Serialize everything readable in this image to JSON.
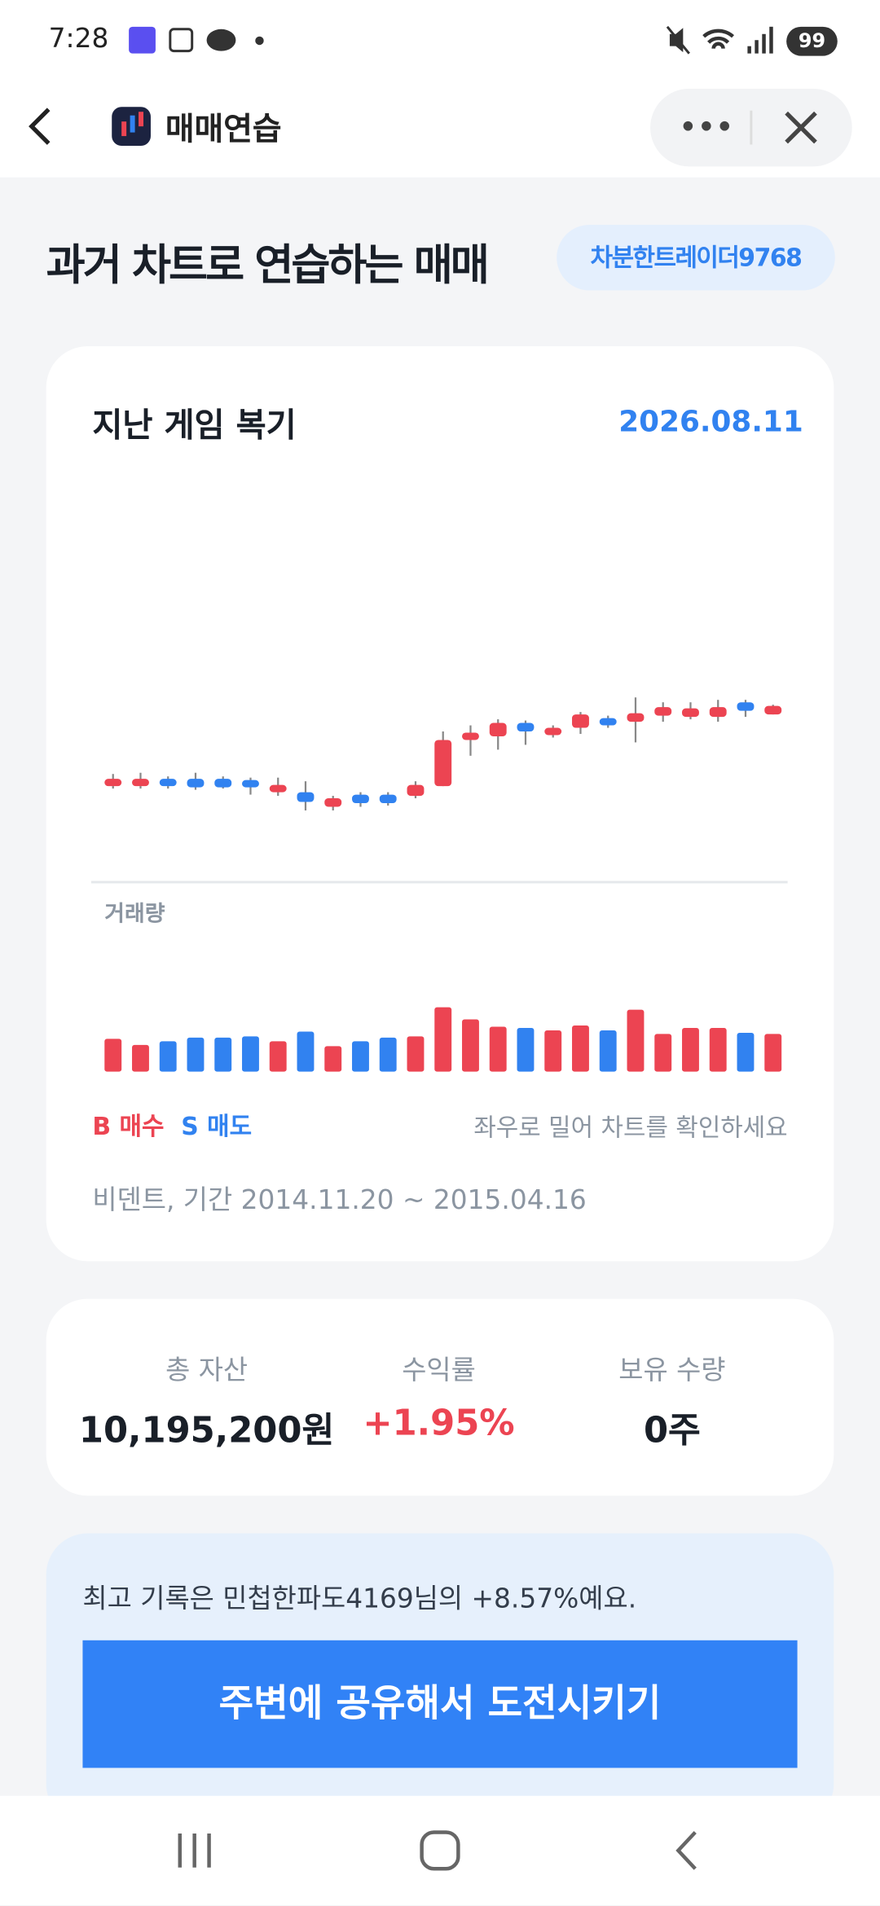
{
  "status_bar": {
    "time": "7:28",
    "battery": "99"
  },
  "header": {
    "title": "매매연습"
  },
  "page": {
    "title": "과거 차트로 연습하는 매매",
    "nickname": "차분한트레이더9768"
  },
  "review_card": {
    "title": "지난 게임 복기",
    "date": "2026.08.11",
    "volume_label": "거래량",
    "legend_buy": "B 매수",
    "legend_sell": "S 매도",
    "hint": "좌우로 밀어 차트를 확인하세요",
    "period": "비덴트, 기간 2014.11.20 ~ 2015.04.16"
  },
  "chart_data": {
    "type": "candlestick",
    "up_color": "#ec4452",
    "down_color": "#3182f0",
    "ylim": [
      0,
      340
    ],
    "volume_ylim": [
      0,
      100
    ],
    "open": [
      73,
      73,
      79,
      79,
      79,
      78,
      68,
      68,
      56,
      66,
      66,
      65,
      73,
      111,
      114,
      125,
      115,
      121,
      129,
      126,
      131,
      130,
      130,
      142,
      132
    ],
    "close": [
      79,
      79,
      73,
      72,
      72,
      72,
      74,
      60,
      63,
      59,
      59,
      74,
      111,
      117,
      125,
      118,
      121,
      132,
      123,
      133,
      138,
      137,
      138,
      135,
      139
    ],
    "high": [
      83,
      84,
      81,
      84,
      81,
      80,
      80,
      77,
      65,
      68,
      68,
      77,
      118,
      123,
      128,
      127,
      123,
      134,
      131,
      146,
      142,
      142,
      144,
      144,
      140
    ],
    "low": [
      71,
      71,
      71,
      70,
      71,
      66,
      65,
      53,
      53,
      56,
      57,
      63,
      73,
      98,
      103,
      107,
      113,
      116,
      121,
      109,
      126,
      128,
      126,
      130,
      132
    ],
    "volume": [
      27,
      22,
      25,
      28,
      28,
      29,
      25,
      33,
      21,
      25,
      28,
      29,
      53,
      43,
      37,
      36,
      34,
      38,
      34,
      51,
      31,
      36,
      36,
      32,
      31
    ]
  },
  "stats": [
    {
      "label": "총 자산",
      "value": "10,195,200원"
    },
    {
      "label": "수익률",
      "value": "+1.95%"
    },
    {
      "label": "보유 수량",
      "value": "0주"
    }
  ],
  "record": {
    "text": "최고 기록은 민첩한파도4169님의 +8.57%예요.",
    "button": "주변에 공유해서 도전시키기"
  }
}
